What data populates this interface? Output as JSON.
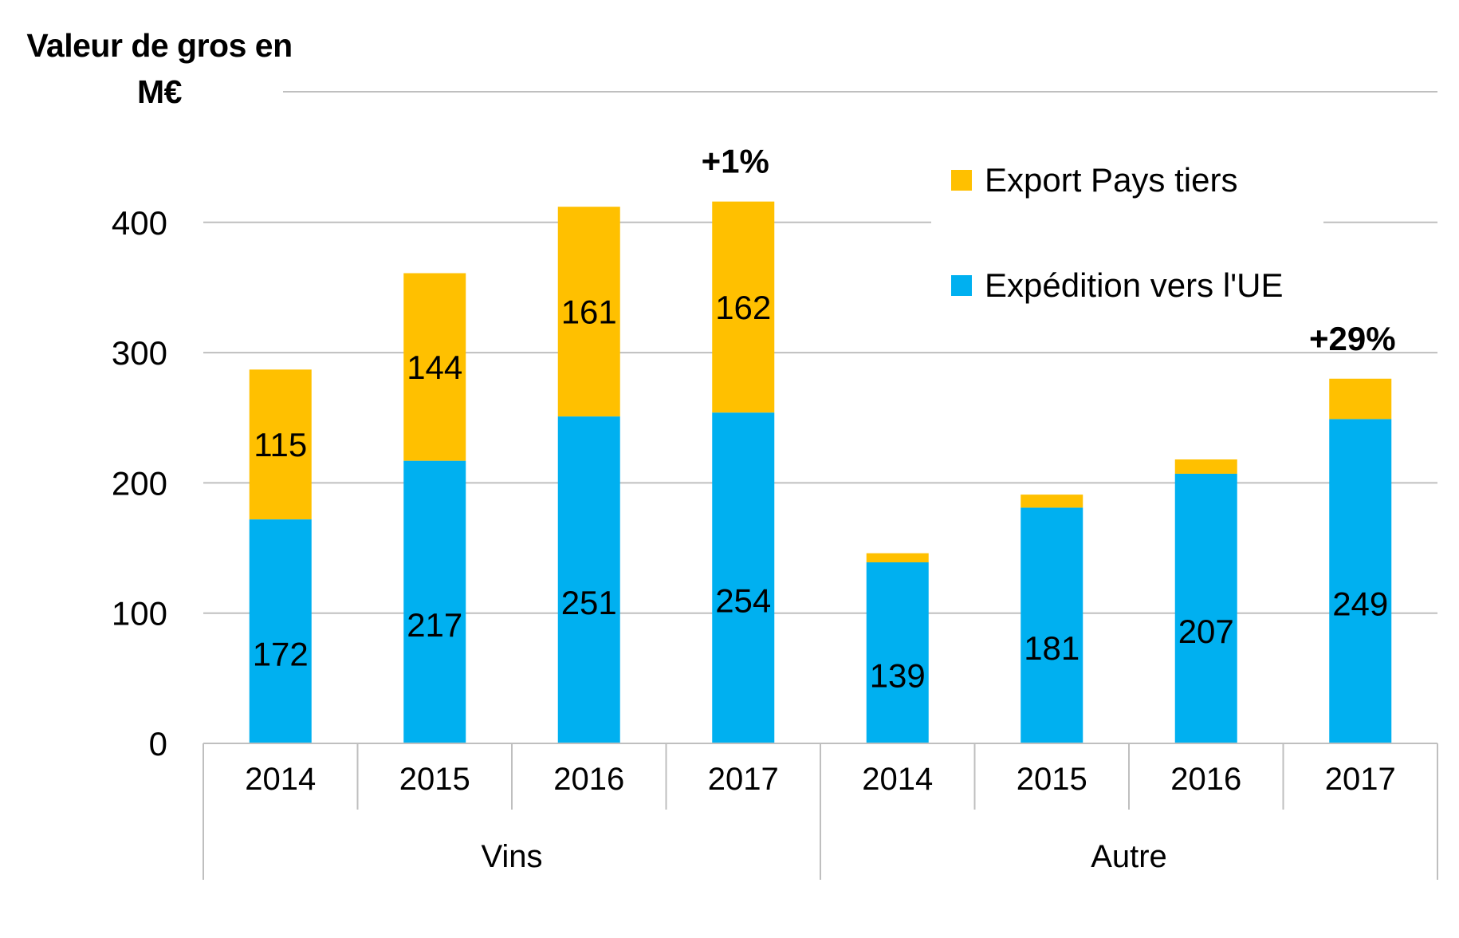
{
  "chart_data": {
    "type": "bar",
    "stacked": true,
    "ylabel": "Valeur de gros en M€",
    "ylim": [
      0,
      400
    ],
    "yticks": [
      0,
      100,
      200,
      300,
      400
    ],
    "grid": true,
    "legend_position": "top-right",
    "groups": [
      {
        "name": "Vins",
        "categories": [
          "2014",
          "2015",
          "2016",
          "2017"
        ]
      },
      {
        "name": "Autre",
        "categories": [
          "2014",
          "2015",
          "2016",
          "2017"
        ]
      }
    ],
    "series": [
      {
        "name": "Expédition vers l'UE",
        "color": "#00B0F0",
        "values": [
          172,
          217,
          251,
          254,
          139,
          181,
          207,
          249
        ],
        "labels": [
          "172",
          "217",
          "251",
          "254",
          "139",
          "181",
          "207",
          "249"
        ]
      },
      {
        "name": "Export Pays tiers",
        "color": "#FFC000",
        "values": [
          115,
          144,
          161,
          162,
          7,
          10,
          11,
          31
        ],
        "labels": [
          "115",
          "144",
          "161",
          "162",
          "",
          "",
          "",
          ""
        ]
      }
    ],
    "annotations": [
      {
        "bar_index": 3,
        "text": "+1%"
      },
      {
        "bar_index": 7,
        "text": "+29%"
      }
    ],
    "colors": {
      "grid": "#BFBFBF",
      "axis": "#BFBFBF"
    }
  }
}
